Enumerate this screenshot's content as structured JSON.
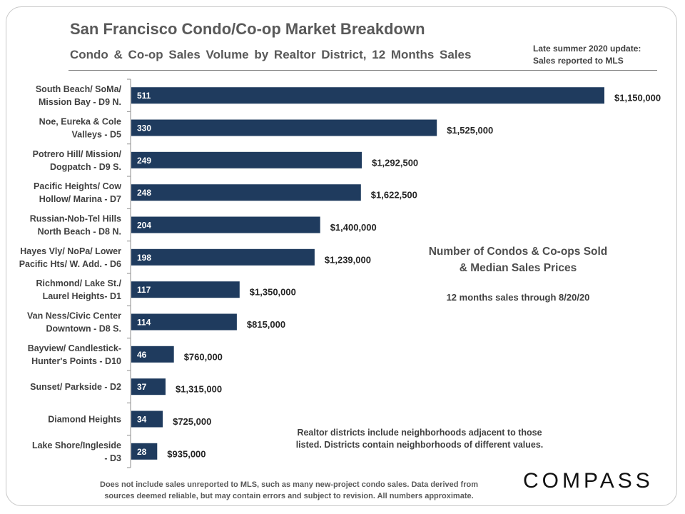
{
  "header": {
    "title": "San Francisco Condo/Co-op Market Breakdown",
    "subtitle": "Condo & Co-op Sales Volume by Realtor District, 12 Months Sales",
    "note_line1": "Late summer 2020 update:",
    "note_line2": "Sales reported to MLS"
  },
  "legend": {
    "line1": "Number of Condos & Co-ops Sold",
    "line2": "& Median Sales Prices",
    "period": "12 months sales through 8/20/20"
  },
  "district_note": {
    "line1": "Realtor districts include neighborhoods adjacent to those",
    "line2": "listed. Districts contain neighborhoods of different values."
  },
  "footer": {
    "line1": "Does not include sales unreported to MLS, such as many new-project condo sales. Data derived from",
    "line2": "sources deemed reliable, but may contain errors and subject to revision. All numbers approximate."
  },
  "brand": "COMPASS",
  "colors": {
    "bar": "#1f3b5e"
  },
  "chart_data": {
    "type": "bar",
    "orientation": "horizontal",
    "title": "Condo & Co-op Sales Volume by Realtor District, 12 Months Sales",
    "categories": [
      [
        "South Beach/ SoMa/",
        "Mission Bay - D9 N."
      ],
      [
        "Noe, Eureka & Cole",
        "Valleys - D5"
      ],
      [
        "Potrero Hill/ Mission/",
        "Dogpatch - D9 S."
      ],
      [
        "Pacific Heights/ Cow",
        "Hollow/ Marina - D7"
      ],
      [
        "Russian-Nob-Tel Hills",
        "North Beach - D8 N."
      ],
      [
        "Hayes Vly/ NoPa/ Lower",
        "Pacific Hts/ W. Add. - D6"
      ],
      [
        "Richmond/ Lake St./",
        "Laurel Heights- D1"
      ],
      [
        "Van Ness/Civic Center",
        "Downtown - D8 S."
      ],
      [
        "Bayview/ Candlestick-",
        "Hunter's Points - D10"
      ],
      [
        "Sunset/ Parkside - D2"
      ],
      [
        "Diamond Heights"
      ],
      [
        "Lake Shore/Ingleside",
        "- D3"
      ]
    ],
    "series": [
      {
        "name": "Condos & Co-ops Sold",
        "values": [
          511,
          330,
          249,
          248,
          204,
          198,
          117,
          114,
          46,
          37,
          34,
          28
        ]
      }
    ],
    "annotations": [
      "$1,150,000",
      "$1,525,000",
      "$1,292,500",
      "$1,622,500",
      "$1,400,000",
      "$1,239,000",
      "$1,350,000",
      "$815,000",
      "$760,000",
      "$1,315,000",
      "$725,000",
      "$935,000"
    ],
    "xlim": [
      0,
      511
    ],
    "grid": false,
    "xlabel": "",
    "ylabel": ""
  }
}
